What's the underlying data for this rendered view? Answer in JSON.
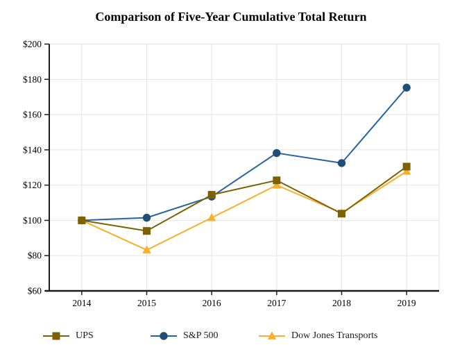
{
  "title": "Comparison of Five-Year Cumulative Total Return",
  "chart_data": {
    "type": "line",
    "categories": [
      "2014",
      "2015",
      "2016",
      "2017",
      "2018",
      "2019"
    ],
    "series": [
      {
        "name": "UPS",
        "marker": "square",
        "color": "#7F6000",
        "line_color": "#7F6000",
        "values": [
          100,
          94.0,
          114.5,
          122.7,
          103.8,
          130.5
        ]
      },
      {
        "name": "S&P 500",
        "marker": "circle",
        "color": "#1F4E79",
        "line_color": "#2564A0",
        "values": [
          100,
          101.5,
          113.5,
          138.2,
          132.5,
          175.3
        ]
      },
      {
        "name": "Dow Jones Transports",
        "marker": "triangle",
        "color": "#FAAE2A",
        "line_color": "#FAAE2A",
        "values": [
          100,
          83.2,
          101.5,
          120.0,
          104.2,
          127.8
        ]
      }
    ],
    "y_ticks": [
      "$200",
      "$180",
      "$160",
      "$140",
      "$120",
      "$100",
      "$80",
      "$60"
    ],
    "y_tick_values": [
      200,
      180,
      160,
      140,
      120,
      100,
      80,
      60
    ],
    "ylim": [
      60,
      200
    ],
    "xlabel": "",
    "ylabel": "",
    "grid": true,
    "legend_position": "bottom"
  },
  "colors": {
    "grid": "#E3E3E3",
    "axis": "#1A1A1A",
    "background": "#FFFFFF",
    "text": "#000000"
  }
}
